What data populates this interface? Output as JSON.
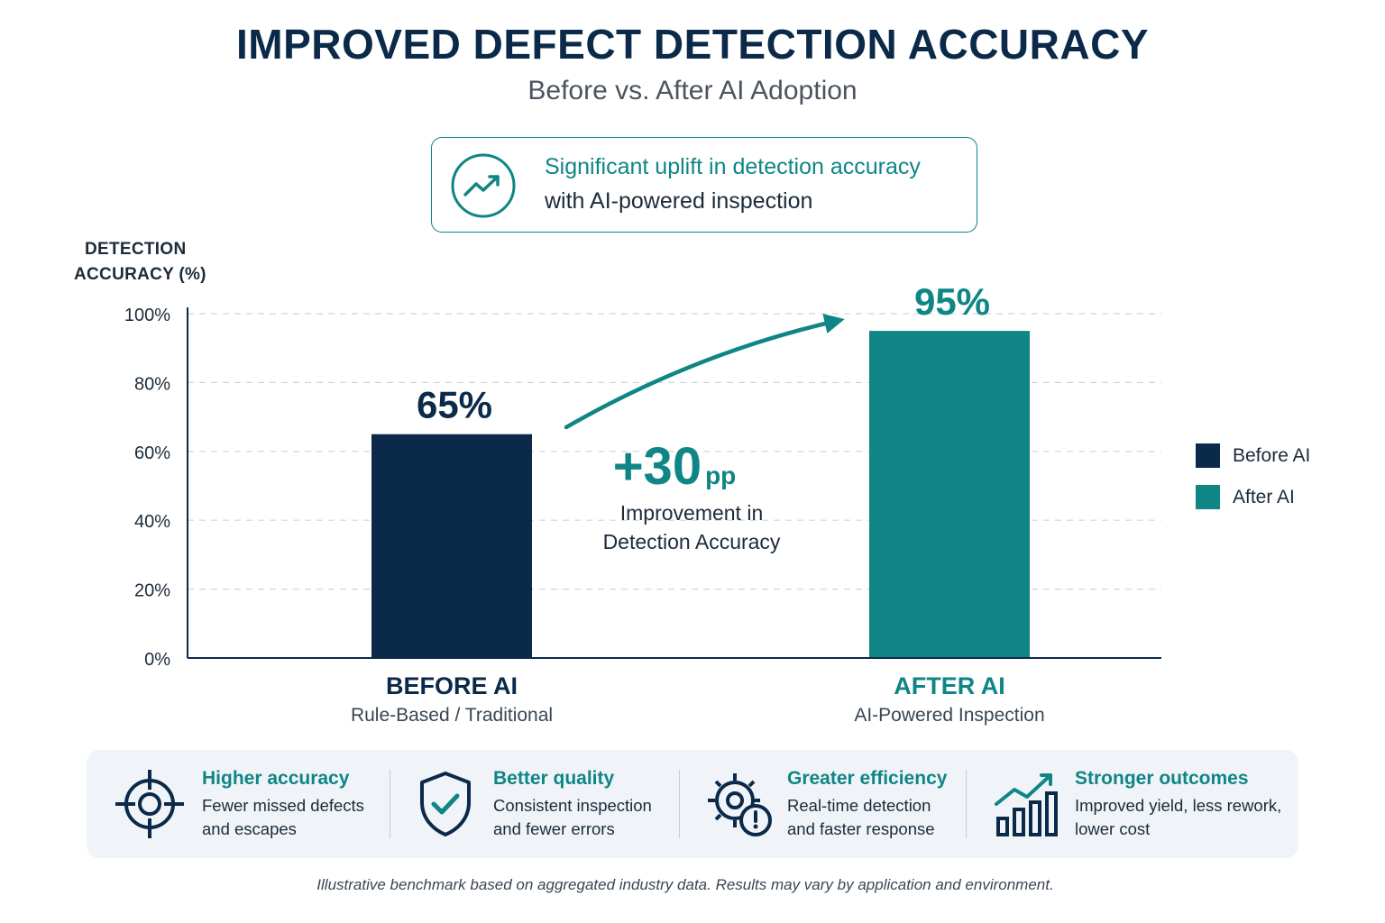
{
  "title": "IMPROVED DEFECT DETECTION ACCURACY",
  "subtitle": "Before vs. After AI Adoption",
  "callout": {
    "icon": "trend-up-icon",
    "line1": "Significant uplift in detection accuracy",
    "line2": "with AI-powered inspection"
  },
  "chart_data": {
    "type": "bar",
    "categories": [
      "BEFORE AI",
      "AFTER AI"
    ],
    "category_subtitles": [
      "Rule-Based / Traditional",
      "AI-Powered Inspection"
    ],
    "values": [
      65,
      95
    ],
    "value_labels": [
      "65%",
      "95%"
    ],
    "colors": [
      "#0b2a4a",
      "#0f8585"
    ],
    "ylabel_line1": "DETECTION",
    "ylabel_line2": "ACCURACY (%)",
    "ylim": [
      0,
      100
    ],
    "yticks": [
      0,
      20,
      40,
      60,
      80,
      100
    ],
    "ytick_labels": [
      "0%",
      "20%",
      "40%",
      "60%",
      "80%",
      "100%"
    ],
    "grid": true,
    "legend": {
      "placement": "right",
      "entries": [
        {
          "label": "Before AI",
          "color": "#0b2a4a"
        },
        {
          "label": "After AI",
          "color": "#0f8585"
        }
      ]
    },
    "annotation": {
      "value": "+30",
      "unit": "pp",
      "line1": "Improvement in",
      "line2": "Detection Accuracy"
    }
  },
  "benefits": [
    {
      "icon": "target-icon",
      "title": "Higher accuracy",
      "desc1": "Fewer missed defects",
      "desc2": "and escapes"
    },
    {
      "icon": "shield-check-icon",
      "title": "Better quality",
      "desc1": "Consistent inspection",
      "desc2": "and fewer errors"
    },
    {
      "icon": "gear-clock-icon",
      "title": "Greater efficiency",
      "desc1": "Real-time detection",
      "desc2": "and faster response"
    },
    {
      "icon": "bar-chart-up-icon",
      "title": "Stronger outcomes",
      "desc1": "Improved yield, less rework,",
      "desc2": "lower cost"
    }
  ],
  "footnote": "Illustrative benchmark based on aggregated industry data. Results may vary by application and environment."
}
